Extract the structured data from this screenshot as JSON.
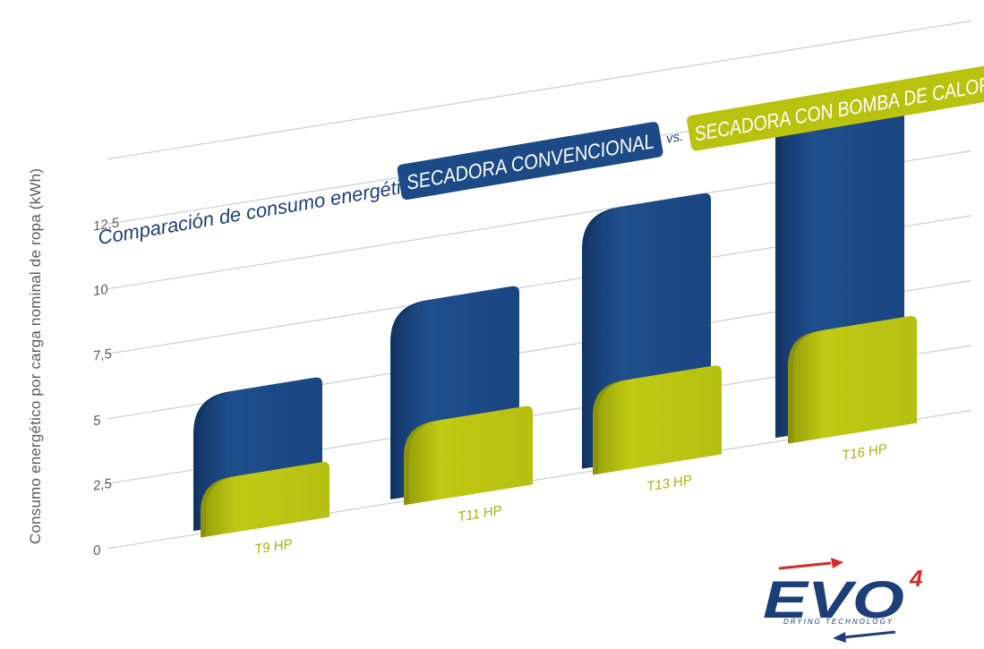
{
  "chart_data": {
    "type": "bar",
    "title_prefix": "Comparación de consumo energético -",
    "series_labels": [
      "SECADORA CONVENCIONAL",
      "SECADORA CON BOMBA DE CALOR"
    ],
    "vs_label": "vs.",
    "ylabel": "Consumo energético por carga nominal de ropa (kWh)",
    "xlabel": "",
    "categories": [
      "T9 HP",
      "T11 HP",
      "T13 HP",
      "T16 HP"
    ],
    "series": [
      {
        "name": "SECADORA CONVENCIONAL",
        "values": [
          5.3,
          7.6,
          10.0,
          13.0
        ]
      },
      {
        "name": "SECADORA CON BOMBA DE CALOR",
        "values": [
          2.0,
          2.9,
          3.3,
          4.0
        ]
      }
    ],
    "yticks": [
      "0",
      "2,5",
      "5",
      "7,5",
      "10",
      "12,5"
    ],
    "ylim": [
      0,
      15
    ],
    "grid": true,
    "colors": {
      "convencional": "#1c4a86",
      "bomba": "#b9c30f",
      "axis_text": "#5a5a5a",
      "logo_blue": "#1c3f7a",
      "logo_red": "#d62828"
    }
  },
  "logo": {
    "text": "EVO",
    "superscript": "4",
    "tagline": "DRYING TECHNOLOGY"
  }
}
